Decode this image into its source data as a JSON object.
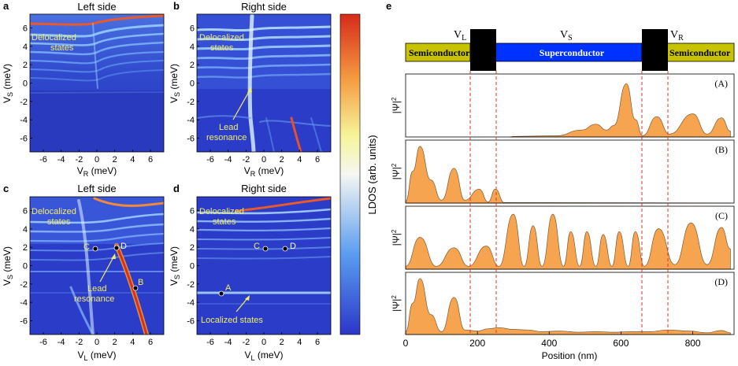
{
  "panels": {
    "a": {
      "letter": "a",
      "title": "Left side",
      "xlabel_main": "V",
      "xlabel_sub": "R",
      "xlabel_unit": " (meV)"
    },
    "b": {
      "letter": "b",
      "title": "Right side",
      "xlabel_main": "V",
      "xlabel_sub": "R",
      "xlabel_unit": " (meV)"
    },
    "c": {
      "letter": "c",
      "title": "Left side",
      "xlabel_main": "V",
      "xlabel_sub": "L",
      "xlabel_unit": " (meV)"
    },
    "d": {
      "letter": "d",
      "title": "Right side",
      "xlabel_main": "V",
      "xlabel_sub": "L",
      "xlabel_unit": " (meV)"
    },
    "e": {
      "letter": "e"
    }
  },
  "ylabel": {
    "main": "V",
    "sub": "S",
    "unit": " (meV)"
  },
  "ticks": {
    "x": [
      "-6",
      "-4",
      "-2",
      "0",
      "2",
      "4",
      "6"
    ],
    "y": [
      "6",
      "4",
      "2",
      "0",
      "-2",
      "-4",
      "-6"
    ]
  },
  "annotations": {
    "deloc_line1": "Delocalized",
    "deloc_line2": "states",
    "lead_line1": "Lead",
    "lead_line2": "resonance",
    "localized": "Localized states",
    "pt_A": "A",
    "pt_B": "B",
    "pt_C": "C",
    "pt_D": "D"
  },
  "colorbar": {
    "label": "LDOS (arb. units)"
  },
  "device": {
    "labels": [
      "Semiconductor",
      "Superconductor",
      "Semiconductor"
    ],
    "gate_main": "V",
    "gates": [
      "L",
      "S",
      "R"
    ]
  },
  "wavefunctions": {
    "ylabel": "|Ψ|",
    "ylabel_sup": "2",
    "state_labels": [
      "(A)",
      "(B)",
      "(C)",
      "(D)"
    ],
    "xlabel": "Position (nm)",
    "xticks": [
      "0",
      "200",
      "400",
      "600",
      "800"
    ],
    "profiles": [
      [
        [
          290,
          0
        ],
        [
          300,
          0.01
        ],
        [
          420,
          0.02
        ],
        [
          490,
          0.12
        ],
        [
          530,
          0.22
        ],
        [
          560,
          0.12
        ],
        [
          580,
          0.2
        ],
        [
          615,
          0.92
        ],
        [
          640,
          0.3
        ],
        [
          660,
          0.02
        ],
        [
          700,
          0.35
        ],
        [
          735,
          0.05
        ],
        [
          800,
          0.4
        ],
        [
          840,
          0.05
        ],
        [
          880,
          0.33
        ],
        [
          905,
          0.1
        ]
      ],
      [
        [
          0,
          0.03
        ],
        [
          20,
          0.55
        ],
        [
          40,
          0.98
        ],
        [
          70,
          0.4
        ],
        [
          100,
          0.05
        ],
        [
          135,
          0.6
        ],
        [
          165,
          0.05
        ],
        [
          205,
          0.24
        ],
        [
          230,
          0.02
        ],
        [
          250,
          0.24
        ],
        [
          275,
          0.01
        ],
        [
          905,
          0
        ]
      ],
      [
        [
          0,
          0.05
        ],
        [
          40,
          0.55
        ],
        [
          85,
          0.05
        ],
        [
          135,
          0.37
        ],
        [
          175,
          0.05
        ],
        [
          225,
          0.4
        ],
        [
          260,
          0.05
        ],
        [
          300,
          0.95
        ],
        [
          330,
          0.05
        ],
        [
          355,
          0.75
        ],
        [
          380,
          0.05
        ],
        [
          410,
          0.95
        ],
        [
          440,
          0.05
        ],
        [
          460,
          0.65
        ],
        [
          485,
          0.05
        ],
        [
          505,
          0.65
        ],
        [
          530,
          0.05
        ],
        [
          550,
          0.6
        ],
        [
          575,
          0.05
        ],
        [
          595,
          0.65
        ],
        [
          620,
          0.05
        ],
        [
          640,
          0.65
        ],
        [
          665,
          0.05
        ],
        [
          705,
          0.7
        ],
        [
          750,
          0.08
        ],
        [
          795,
          0.8
        ],
        [
          840,
          0.08
        ],
        [
          880,
          0.72
        ],
        [
          905,
          0.35
        ]
      ],
      [
        [
          0,
          0.05
        ],
        [
          20,
          0.55
        ],
        [
          40,
          0.98
        ],
        [
          70,
          0.35
        ],
        [
          100,
          0.05
        ],
        [
          135,
          0.65
        ],
        [
          165,
          0.08
        ],
        [
          200,
          0.06
        ],
        [
          230,
          0.1
        ],
        [
          260,
          0.12
        ],
        [
          300,
          0.09
        ],
        [
          340,
          0.08
        ],
        [
          380,
          0.05
        ],
        [
          430,
          0.06
        ],
        [
          480,
          0.04
        ],
        [
          530,
          0.05
        ],
        [
          580,
          0.04
        ],
        [
          630,
          0.05
        ],
        [
          680,
          0.05
        ],
        [
          730,
          0.08
        ],
        [
          790,
          0.06
        ],
        [
          840,
          0.03
        ],
        [
          880,
          0.07
        ],
        [
          905,
          0.03
        ]
      ]
    ]
  },
  "colors": {
    "frame_bg": "#2a3cc8",
    "semiconductor": "#c8c300",
    "superconductor": "#0032ff",
    "gate": "#000000",
    "fill": "#f6a44f",
    "dash": "#e0322c",
    "annot": "#f3ee6a"
  }
}
